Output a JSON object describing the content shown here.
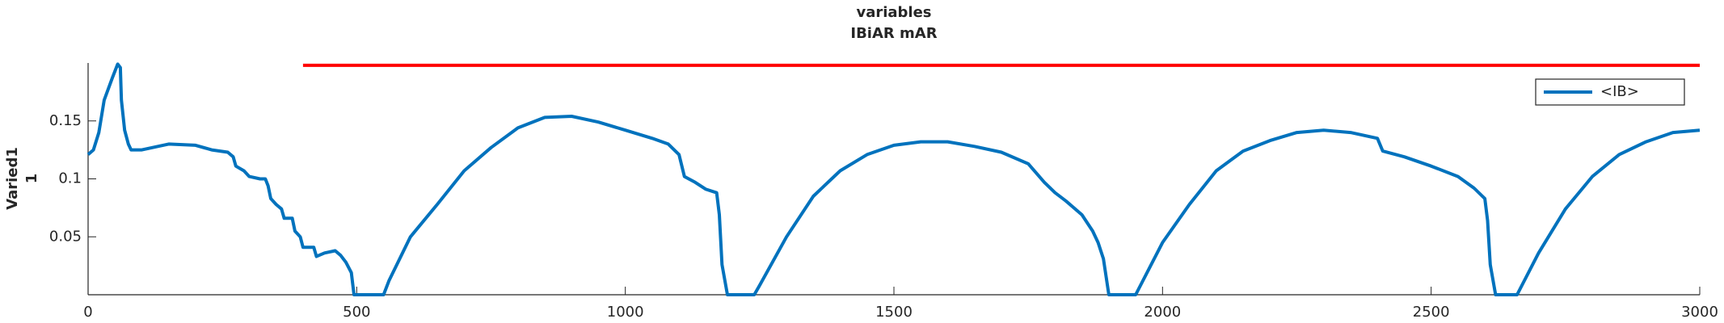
{
  "chart_data": {
    "type": "line",
    "title": "variables",
    "subtitle": "IBiAR mAR",
    "y_label": [
      "Varied1",
      "1"
    ],
    "x": [
      0,
      10,
      20,
      30,
      45,
      55,
      60,
      62,
      68,
      75,
      80,
      100,
      150,
      200,
      230,
      260,
      270,
      275,
      290,
      300,
      320,
      330,
      335,
      340,
      350,
      360,
      365,
      380,
      385,
      395,
      400,
      420,
      425,
      440,
      460,
      470,
      480,
      490,
      495,
      550,
      560,
      600,
      650,
      700,
      750,
      800,
      850,
      900,
      950,
      1000,
      1050,
      1080,
      1100,
      1110,
      1130,
      1150,
      1170,
      1175,
      1180,
      1190,
      1240,
      1250,
      1300,
      1350,
      1400,
      1450,
      1500,
      1550,
      1600,
      1650,
      1700,
      1750,
      1780,
      1800,
      1820,
      1850,
      1870,
      1880,
      1890,
      1900,
      1950,
      2000,
      2050,
      2100,
      2150,
      2200,
      2250,
      2300,
      2350,
      2400,
      2410,
      2450,
      2500,
      2550,
      2580,
      2600,
      2605,
      2610,
      2620,
      2660,
      2700,
      2750,
      2800,
      2850,
      2900,
      2950,
      3000
    ],
    "series": [
      {
        "name": "<IB>",
        "color": "#0072bd",
        "values": [
          0.121,
          0.125,
          0.14,
          0.168,
          0.187,
          0.199,
          0.196,
          0.168,
          0.142,
          0.13,
          0.125,
          0.125,
          0.13,
          0.129,
          0.125,
          0.123,
          0.119,
          0.111,
          0.107,
          0.102,
          0.1,
          0.1,
          0.094,
          0.083,
          0.078,
          0.074,
          0.066,
          0.066,
          0.055,
          0.05,
          0.041,
          0.041,
          0.033,
          0.036,
          0.038,
          0.034,
          0.028,
          0.019,
          0,
          0,
          0.012,
          0.05,
          0.078,
          0.107,
          0.127,
          0.144,
          0.153,
          0.154,
          0.149,
          0.142,
          0.135,
          0.13,
          0.121,
          0.102,
          0.097,
          0.091,
          0.088,
          0.069,
          0.026,
          0,
          0,
          0.008,
          0.05,
          0.085,
          0.107,
          0.121,
          0.129,
          0.132,
          0.132,
          0.128,
          0.123,
          0.113,
          0.097,
          0.088,
          0.081,
          0.069,
          0.055,
          0.045,
          0.031,
          0,
          0,
          0.045,
          0.078,
          0.107,
          0.124,
          0.133,
          0.14,
          0.142,
          0.14,
          0.135,
          0.124,
          0.119,
          0.111,
          0.102,
          0.092,
          0.083,
          0.064,
          0.026,
          0,
          0,
          0.036,
          0.074,
          0.102,
          0.121,
          0.132,
          0.14,
          0.142
        ]
      }
    ],
    "reference_line": {
      "x": [
        400,
        3000
      ],
      "values": [
        0.198,
        0.198
      ],
      "color": "#ff0000"
    },
    "xlim": [
      0,
      3000
    ],
    "xticks": [
      0,
      500,
      1000,
      1500,
      2000,
      2500,
      3000
    ],
    "ylim": [
      0,
      0.2
    ],
    "yticks": [
      0.05,
      0.1,
      0.15
    ],
    "grid": false,
    "legend_position": "upper-right"
  }
}
